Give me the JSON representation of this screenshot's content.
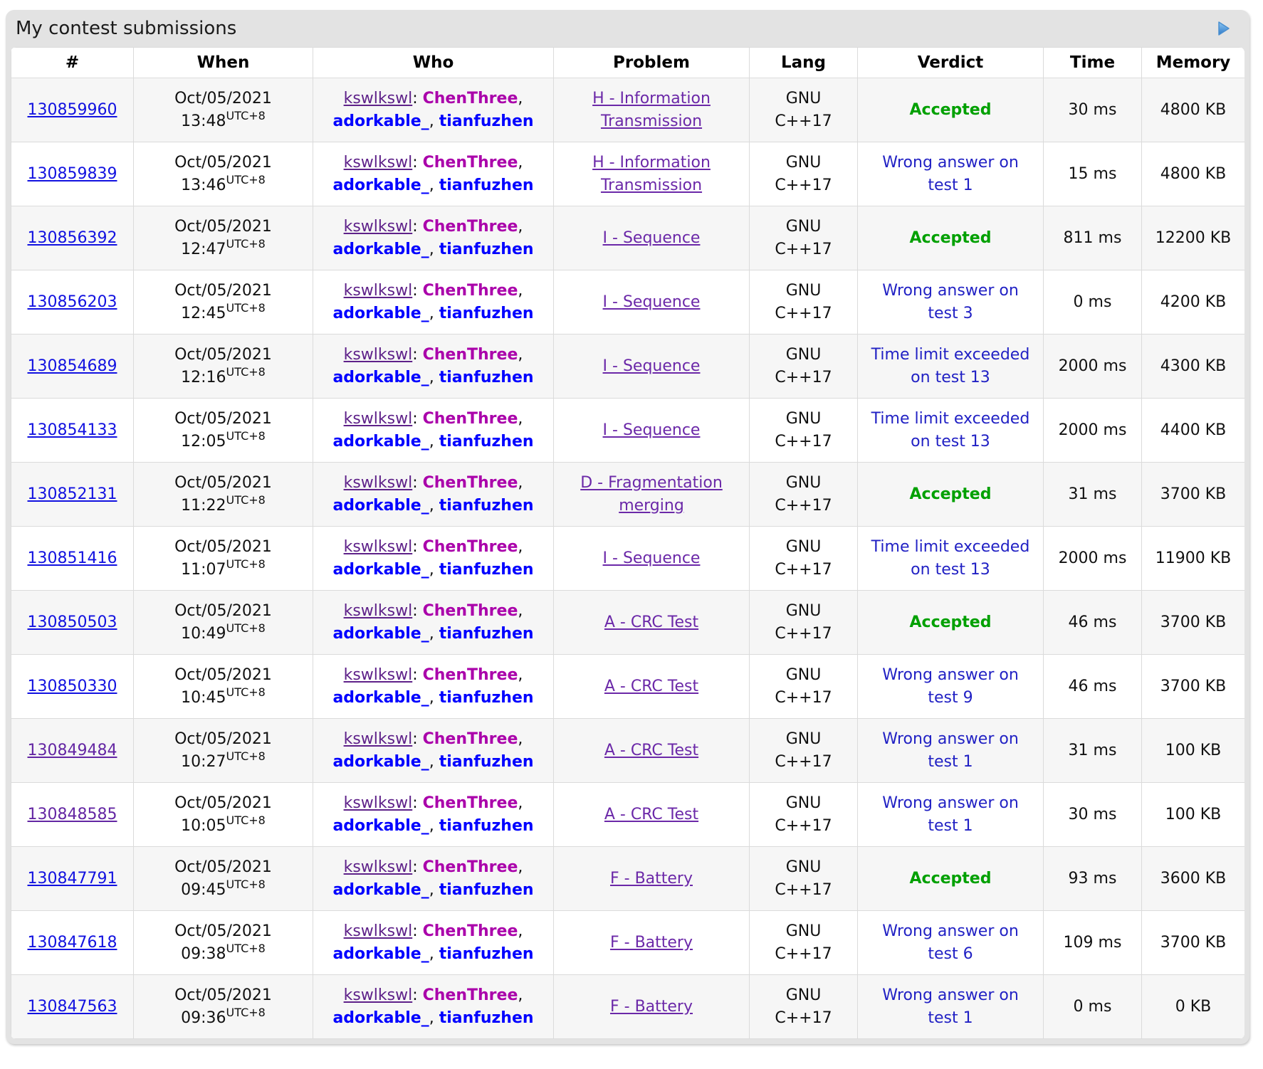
{
  "page": {
    "caption": "My contest submissions",
    "caption_arrow_icon": "sidebar-expand-arrow-icon"
  },
  "colors": {
    "caption_bg": "#e3e3e3",
    "row_alt_bg": "#f6f6f6",
    "accepted_green": "#00a000",
    "rejected_blue": "#2121c4",
    "link_blue": "#1212e0",
    "link_visited_purple": "#6326a3",
    "problem_link_purple": "#6b28a8",
    "arrow_blue": "#3f8fd4"
  },
  "table": {
    "columns": [
      "#",
      "When",
      "Who",
      "Problem",
      "Lang",
      "Verdict",
      "Time",
      "Memory"
    ],
    "who": {
      "team": "kswlkswl",
      "separator": ": ",
      "members": [
        {
          "handle": "ChenThree",
          "color": "#aa00aa"
        },
        {
          "handle": "adorkable_",
          "color": "#0000ff"
        },
        {
          "handle": "tianfuzhen",
          "color": "#0000ff"
        }
      ]
    },
    "rows": [
      {
        "id": "130859960",
        "visited": false,
        "date": "Oct/05/2021",
        "time": "13:48",
        "tz": "UTC+8",
        "problem": "H - Information Transmission",
        "lang": "GNU C++17",
        "verdict": "Accepted",
        "verdict_type": "accepted",
        "time_ms": "30 ms",
        "memory": "4800 KB"
      },
      {
        "id": "130859839",
        "visited": false,
        "date": "Oct/05/2021",
        "time": "13:46",
        "tz": "UTC+8",
        "problem": "H - Information Transmission",
        "lang": "GNU C++17",
        "verdict": "Wrong answer on test 1",
        "verdict_type": "rejected",
        "time_ms": "15 ms",
        "memory": "4800 KB"
      },
      {
        "id": "130856392",
        "visited": false,
        "date": "Oct/05/2021",
        "time": "12:47",
        "tz": "UTC+8",
        "problem": "I - Sequence",
        "lang": "GNU C++17",
        "verdict": "Accepted",
        "verdict_type": "accepted",
        "time_ms": "811 ms",
        "memory": "12200 KB"
      },
      {
        "id": "130856203",
        "visited": false,
        "date": "Oct/05/2021",
        "time": "12:45",
        "tz": "UTC+8",
        "problem": "I - Sequence",
        "lang": "GNU C++17",
        "verdict": "Wrong answer on test 3",
        "verdict_type": "rejected",
        "time_ms": "0 ms",
        "memory": "4200 KB"
      },
      {
        "id": "130854689",
        "visited": false,
        "date": "Oct/05/2021",
        "time": "12:16",
        "tz": "UTC+8",
        "problem": "I - Sequence",
        "lang": "GNU C++17",
        "verdict": "Time limit exceeded on test 13",
        "verdict_type": "rejected",
        "time_ms": "2000 ms",
        "memory": "4300 KB"
      },
      {
        "id": "130854133",
        "visited": false,
        "date": "Oct/05/2021",
        "time": "12:05",
        "tz": "UTC+8",
        "problem": "I - Sequence",
        "lang": "GNU C++17",
        "verdict": "Time limit exceeded on test 13",
        "verdict_type": "rejected",
        "time_ms": "2000 ms",
        "memory": "4400 KB"
      },
      {
        "id": "130852131",
        "visited": false,
        "date": "Oct/05/2021",
        "time": "11:22",
        "tz": "UTC+8",
        "problem": "D - Fragmentation merging",
        "lang": "GNU C++17",
        "verdict": "Accepted",
        "verdict_type": "accepted",
        "time_ms": "31 ms",
        "memory": "3700 KB"
      },
      {
        "id": "130851416",
        "visited": false,
        "date": "Oct/05/2021",
        "time": "11:07",
        "tz": "UTC+8",
        "problem": "I - Sequence",
        "lang": "GNU C++17",
        "verdict": "Time limit exceeded on test 13",
        "verdict_type": "rejected",
        "time_ms": "2000 ms",
        "memory": "11900 KB"
      },
      {
        "id": "130850503",
        "visited": false,
        "date": "Oct/05/2021",
        "time": "10:49",
        "tz": "UTC+8",
        "problem": "A - CRC Test",
        "lang": "GNU C++17",
        "verdict": "Accepted",
        "verdict_type": "accepted",
        "time_ms": "46 ms",
        "memory": "3700 KB"
      },
      {
        "id": "130850330",
        "visited": false,
        "date": "Oct/05/2021",
        "time": "10:45",
        "tz": "UTC+8",
        "problem": "A - CRC Test",
        "lang": "GNU C++17",
        "verdict": "Wrong answer on test 9",
        "verdict_type": "rejected",
        "time_ms": "46 ms",
        "memory": "3700 KB"
      },
      {
        "id": "130849484",
        "visited": true,
        "date": "Oct/05/2021",
        "time": "10:27",
        "tz": "UTC+8",
        "problem": "A - CRC Test",
        "lang": "GNU C++17",
        "verdict": "Wrong answer on test 1",
        "verdict_type": "rejected",
        "time_ms": "31 ms",
        "memory": "100 KB"
      },
      {
        "id": "130848585",
        "visited": true,
        "date": "Oct/05/2021",
        "time": "10:05",
        "tz": "UTC+8",
        "problem": "A - CRC Test",
        "lang": "GNU C++17",
        "verdict": "Wrong answer on test 1",
        "verdict_type": "rejected",
        "time_ms": "30 ms",
        "memory": "100 KB"
      },
      {
        "id": "130847791",
        "visited": false,
        "date": "Oct/05/2021",
        "time": "09:45",
        "tz": "UTC+8",
        "problem": "F - Battery",
        "lang": "GNU C++17",
        "verdict": "Accepted",
        "verdict_type": "accepted",
        "time_ms": "93 ms",
        "memory": "3600 KB"
      },
      {
        "id": "130847618",
        "visited": false,
        "date": "Oct/05/2021",
        "time": "09:38",
        "tz": "UTC+8",
        "problem": "F - Battery",
        "lang": "GNU C++17",
        "verdict": "Wrong answer on test 6",
        "verdict_type": "rejected",
        "time_ms": "109 ms",
        "memory": "3700 KB"
      },
      {
        "id": "130847563",
        "visited": false,
        "date": "Oct/05/2021",
        "time": "09:36",
        "tz": "UTC+8",
        "problem": "F - Battery",
        "lang": "GNU C++17",
        "verdict": "Wrong answer on test 1",
        "verdict_type": "rejected",
        "time_ms": "0 ms",
        "memory": "0 KB"
      }
    ]
  }
}
